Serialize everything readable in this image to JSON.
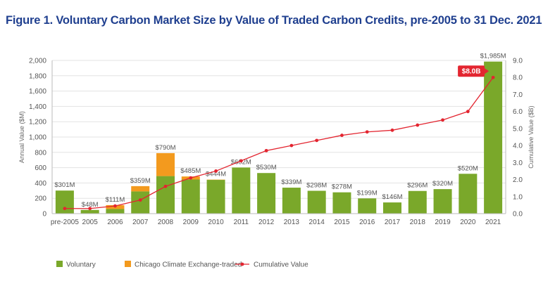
{
  "page": {
    "title": "Figure 1. Voluntary Carbon Market Size by Value of Traded Carbon Credits, pre-2005 to 31 Dec. 2021"
  },
  "colors": {
    "voluntary": "#7aa82a",
    "chicago": "#f39a1e",
    "cumulative": "#e32530",
    "title": "#1f3f8f"
  },
  "chart_data": {
    "type": "bar",
    "title": "Figure 1. Voluntary Carbon Market Size by Value of Traded Carbon Credits, pre-2005 to 31 Dec. 2021",
    "categories": [
      "pre-2005",
      "2005",
      "2006",
      "2007",
      "2008",
      "2009",
      "2010",
      "2011",
      "2012",
      "2013",
      "2014",
      "2015",
      "2016",
      "2017",
      "2018",
      "2019",
      "2020",
      "2021"
    ],
    "series": [
      {
        "name": "Voluntary",
        "type": "bar",
        "stack": "annual",
        "values": [
          301,
          48,
          60,
          290,
          490,
          445,
          440,
          602,
          530,
          339,
          298,
          278,
          199,
          146,
          296,
          320,
          520,
          1985
        ]
      },
      {
        "name": "Chicago Climate Exchange-traded",
        "type": "bar",
        "stack": "annual",
        "values": [
          0,
          0,
          51,
          69,
          300,
          40,
          4,
          0,
          0,
          0,
          0,
          0,
          0,
          0,
          0,
          0,
          0,
          0
        ]
      },
      {
        "name": "Cumulative Value",
        "type": "line",
        "axis": "right",
        "values": [
          0.3,
          0.3,
          0.45,
          0.8,
          1.6,
          2.1,
          2.5,
          3.1,
          3.7,
          4.0,
          4.3,
          4.6,
          4.8,
          4.9,
          5.2,
          5.5,
          6.0,
          8.0
        ]
      }
    ],
    "bar_labels": [
      "$301M",
      "$48M",
      "$111M",
      "$359M",
      "$790M",
      "$485M",
      "$444M",
      "$602M",
      "$530M",
      "$339M",
      "$298M",
      "$278M",
      "$199M",
      "$146M",
      "$296M",
      "$320M",
      "$520M",
      "$1,985M"
    ],
    "ylabel": "Annual Value ($M)",
    "ylim": [
      0,
      2000
    ],
    "yticks": [
      "0",
      "200",
      "400",
      "600",
      "800",
      "1,000",
      "1,200",
      "1,400",
      "1,600",
      "1,800",
      "2,000"
    ],
    "y2label": "Cumulative Value ($B)",
    "y2lim": [
      0,
      9
    ],
    "y2ticks": [
      "0.0",
      "1.0",
      "2.0",
      "3.0",
      "4.0",
      "5.0",
      "6.0",
      "7.0",
      "8.0",
      "9.0"
    ],
    "annotation": {
      "text": "$8.0B",
      "category": "2021"
    },
    "legend": [
      "Voluntary",
      "Chicago Climate Exchange-traded",
      "Cumulative Value"
    ],
    "legend_position": "bottom-left"
  }
}
